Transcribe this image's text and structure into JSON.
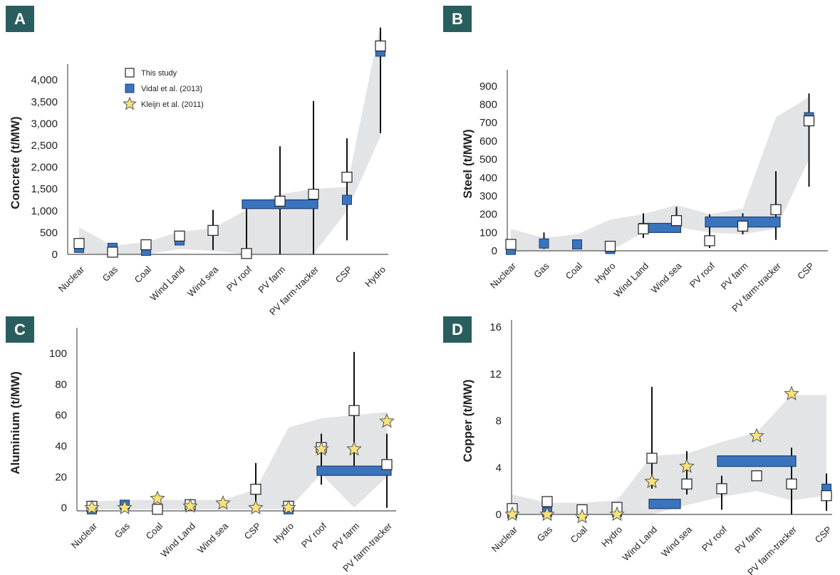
{
  "panels": [
    {
      "id": "A",
      "label": "A"
    },
    {
      "id": "B",
      "label": "B"
    },
    {
      "id": "C",
      "label": "C"
    },
    {
      "id": "D",
      "label": "D"
    }
  ],
  "legend": {
    "items": [
      {
        "label": "This study",
        "marker": "open-square"
      },
      {
        "label": "Vidal et al. (2013)",
        "marker": "blue-square"
      },
      {
        "label": "Kleijn et al. (2011)",
        "marker": "yellow-star"
      }
    ]
  },
  "colors": {
    "badge": "#2a5e5e",
    "vidal": "#3a74bf",
    "vidal_edge": "#1d3f70",
    "star": "#f8e27a",
    "star_edge": "#555555",
    "band": "#e3e4e5",
    "axis": "#555555",
    "whisker": "#111111"
  },
  "chart_data": [
    {
      "panel": "A",
      "type": "scatter",
      "ylabel": "Concrete (t/MW)",
      "ylim": [
        0,
        4200
      ],
      "yticks": [
        0,
        500,
        1000,
        1500,
        2000,
        2500,
        3000,
        3500,
        4000
      ],
      "ytick_labels": [
        "0",
        "500",
        "1,000",
        "1,500",
        "2,000",
        "2,500",
        "3,000",
        "3,500",
        "4,000"
      ],
      "categories": [
        "Nuclear",
        "Gas",
        "Coal",
        "Wind Land",
        "Wind sea",
        "PV roof",
        "PV farm",
        "PV farm-tracker",
        "CSP",
        "Hydro"
      ],
      "this_study": [
        {
          "x": "Nuclear",
          "y": 250
        },
        {
          "x": "Gas",
          "y": 50
        },
        {
          "x": "Coal",
          "y": 220
        },
        {
          "x": "Wind Land",
          "y": 420
        },
        {
          "x": "Wind sea",
          "y": 550
        },
        {
          "x": "PV roof",
          "y": 20
        },
        {
          "x": "PV farm",
          "y": 1220
        },
        {
          "x": "PV farm-tracker",
          "y": 1380
        },
        {
          "x": "CSP",
          "y": 1770
        },
        {
          "x": "Hydro",
          "y": 4780
        }
      ],
      "vidal_2013": [
        {
          "x": "Nuclear",
          "y": 150
        },
        {
          "x": "Gas",
          "y": 150
        },
        {
          "x": "Coal",
          "y": 80
        },
        {
          "x": "Wind Land",
          "y": 320
        },
        {
          "x": "CSP",
          "y": 1250
        },
        {
          "x": "Hydro",
          "y": 4650
        }
      ],
      "vidal_range_bar": {
        "from": "PV roof",
        "to": "PV farm-tracker",
        "low": 1050,
        "high": 1250
      },
      "kleijn_2011": [],
      "whiskers": [
        {
          "x": "Wind sea",
          "low": 100,
          "high": 1020
        },
        {
          "x": "PV roof",
          "low": 0,
          "high": 1080
        },
        {
          "x": "PV farm",
          "low": 0,
          "high": 2480
        },
        {
          "x": "PV farm-tracker",
          "low": 0,
          "high": 3520
        },
        {
          "x": "CSP",
          "low": 320,
          "high": 2660
        },
        {
          "x": "Hydro",
          "low": 2780,
          "high": 5200
        }
      ],
      "band_top": [
        620,
        200,
        280,
        520,
        600,
        1020,
        1380,
        1500,
        1550,
        5300
      ],
      "band_bottom": [
        20,
        0,
        0,
        120,
        80,
        0,
        0,
        0,
        1000,
        2700
      ]
    },
    {
      "panel": "B",
      "type": "scatter",
      "ylabel": "Steel (t/MW)",
      "ylim": [
        0,
        950
      ],
      "yticks": [
        0,
        100,
        200,
        300,
        400,
        500,
        600,
        700,
        800,
        900
      ],
      "ytick_labels": [
        "0",
        "100",
        "200",
        "300",
        "400",
        "500",
        "600",
        "700",
        "800",
        "900"
      ],
      "categories": [
        "Nuclear",
        "Gas",
        "Coal",
        "Hydro",
        "Wind Land",
        "Wind sea",
        "PV roof",
        "PV farm",
        "PV farm-tracker",
        "CSP"
      ],
      "this_study": [
        {
          "x": "Nuclear",
          "y": 35
        },
        {
          "x": "Hydro",
          "y": 25
        },
        {
          "x": "Wind Land",
          "y": 120
        },
        {
          "x": "Wind sea",
          "y": 165
        },
        {
          "x": "PV roof",
          "y": 55
        },
        {
          "x": "PV farm",
          "y": 135
        },
        {
          "x": "PV farm-tracker",
          "y": 225
        },
        {
          "x": "CSP",
          "y": 710
        }
      ],
      "vidal_2013": [
        {
          "x": "Nuclear",
          "y": 5
        },
        {
          "x": "Gas",
          "y": 40
        },
        {
          "x": "Coal",
          "y": 35
        },
        {
          "x": "Hydro",
          "y": 10
        },
        {
          "x": "CSP",
          "y": 730
        }
      ],
      "vidal_range_bars": [
        {
          "from": "Wind Land",
          "to": "Wind sea",
          "low": 100,
          "high": 150
        },
        {
          "from": "PV roof",
          "to": "PV farm-tracker",
          "low": 130,
          "high": 185
        }
      ],
      "kleijn_2011": [],
      "whiskers": [
        {
          "x": "Gas",
          "low": 10,
          "high": 100
        },
        {
          "x": "Wind Land",
          "low": 70,
          "high": 205
        },
        {
          "x": "Wind sea",
          "low": 130,
          "high": 240
        },
        {
          "x": "PV roof",
          "low": 15,
          "high": 200
        },
        {
          "x": "PV farm",
          "low": 90,
          "high": 205
        },
        {
          "x": "PV farm-tracker",
          "low": 60,
          "high": 435
        },
        {
          "x": "CSP",
          "low": 350,
          "high": 860
        }
      ],
      "band_top": [
        120,
        70,
        90,
        170,
        200,
        250,
        200,
        230,
        730,
        840
      ],
      "band_bottom": [
        0,
        0,
        0,
        0,
        100,
        130,
        100,
        90,
        120,
        500
      ]
    },
    {
      "panel": "C",
      "type": "scatter",
      "ylabel": "Aluminium (t/MW)",
      "ylim": [
        -2,
        112
      ],
      "yticks": [
        0,
        20,
        40,
        60,
        80,
        100
      ],
      "ytick_labels": [
        "0",
        "20",
        "40",
        "60",
        "80",
        "100"
      ],
      "categories": [
        "Nuclear",
        "Gas",
        "Coal",
        "Wind Land",
        "Wind sea",
        "CSP",
        "Hydro",
        "PV roof",
        "PV farm",
        "PV farm-tracker"
      ],
      "this_study": [
        {
          "x": "Nuclear",
          "y": 1
        },
        {
          "x": "Coal",
          "y": -1
        },
        {
          "x": "Wind Land",
          "y": 2
        },
        {
          "x": "CSP",
          "y": 12
        },
        {
          "x": "Hydro",
          "y": 1
        },
        {
          "x": "PV roof",
          "y": 39
        },
        {
          "x": "PV farm",
          "y": 63
        },
        {
          "x": "PV farm-tracker",
          "y": 28
        }
      ],
      "vidal_2013": [
        {
          "x": "Nuclear",
          "y": -1
        },
        {
          "x": "Gas",
          "y": 2
        },
        {
          "x": "Coal",
          "y": -1
        },
        {
          "x": "Hydro",
          "y": -1
        }
      ],
      "vidal_range_bar": {
        "from": "PV roof",
        "to": "PV farm-tracker",
        "low": 21,
        "high": 27
      },
      "kleijn_2011": [
        {
          "x": "Nuclear",
          "y": 0
        },
        {
          "x": "Gas",
          "y": 0
        },
        {
          "x": "Coal",
          "y": 6
        },
        {
          "x": "Wind Land",
          "y": 1
        },
        {
          "x": "Wind sea",
          "y": 3
        },
        {
          "x": "CSP",
          "y": 0
        },
        {
          "x": "Hydro",
          "y": 0
        },
        {
          "x": "PV roof",
          "y": 38
        },
        {
          "x": "PV farm",
          "y": 38
        },
        {
          "x": "PV farm-tracker",
          "y": 56
        }
      ],
      "whiskers": [
        {
          "x": "CSP",
          "low": 0,
          "high": 29
        },
        {
          "x": "PV roof",
          "low": 15,
          "high": 48
        },
        {
          "x": "PV farm",
          "low": 25,
          "high": 101
        },
        {
          "x": "PV farm-tracker",
          "low": 0,
          "high": 48
        }
      ],
      "band_top": [
        4,
        5,
        5,
        5,
        5,
        12,
        52,
        58,
        60,
        62
      ],
      "band_bottom": [
        -1,
        -1,
        -1,
        -1,
        -1,
        -1,
        -1,
        22,
        0,
        20
      ]
    },
    {
      "panel": "D",
      "type": "scatter",
      "ylabel": "Copper (t/MW)",
      "ylim": [
        0,
        16
      ],
      "yticks": [
        0,
        4,
        8,
        12,
        16
      ],
      "ytick_labels": [
        "0",
        "4",
        "8",
        "12",
        "16"
      ],
      "categories": [
        "Nuclear",
        "Gas",
        "Coal",
        "Hydro",
        "Wind Land",
        "Wind sea",
        "PV roof",
        "PV farm",
        "PV farm-tracker",
        "CSP"
      ],
      "this_study": [
        {
          "x": "Nuclear",
          "y": 0.5
        },
        {
          "x": "Gas",
          "y": 1.1
        },
        {
          "x": "Coal",
          "y": 0.4
        },
        {
          "x": "Hydro",
          "y": 0.6
        },
        {
          "x": "Wind Land",
          "y": 4.8
        },
        {
          "x": "Wind sea",
          "y": 2.6
        },
        {
          "x": "PV roof",
          "y": 2.2
        },
        {
          "x": "PV farm",
          "y": 3.3
        },
        {
          "x": "PV farm-tracker",
          "y": 2.6
        },
        {
          "x": "CSP",
          "y": 1.6
        }
      ],
      "vidal_2013": [
        {
          "x": "Nuclear",
          "y": 0.1
        },
        {
          "x": "Gas",
          "y": 0.2
        },
        {
          "x": "Coal",
          "y": 0.1
        },
        {
          "x": "Hydro",
          "y": 0.2
        },
        {
          "x": "CSP",
          "y": 2.2
        }
      ],
      "vidal_range_bars": [
        {
          "from": "Wind Land",
          "to": "Wind Land",
          "low": 0.5,
          "high": 1.3,
          "wide": true
        },
        {
          "from": "PV roof",
          "to": "PV farm-tracker",
          "low": 4.1,
          "high": 5.0
        }
      ],
      "kleijn_2011": [
        {
          "x": "Nuclear",
          "y": 0
        },
        {
          "x": "Gas",
          "y": 0
        },
        {
          "x": "Coal",
          "y": -0.2
        },
        {
          "x": "Hydro",
          "y": 0
        },
        {
          "x": "Wind Land",
          "y": 2.8
        },
        {
          "x": "Wind sea",
          "y": 4.1
        },
        {
          "x": "PV farm",
          "y": 6.7
        },
        {
          "x": "PV farm-tracker",
          "y": 10.3
        }
      ],
      "whiskers": [
        {
          "x": "Wind Land",
          "low": 2.2,
          "high": 10.9
        },
        {
          "x": "Wind sea",
          "low": 1.7,
          "high": 5.4
        },
        {
          "x": "PV roof",
          "low": 0.4,
          "high": 3.3
        },
        {
          "x": "PV farm-tracker",
          "low": 0,
          "high": 5.7
        },
        {
          "x": "CSP",
          "low": 0.3,
          "high": 3.5
        }
      ],
      "band_top": [
        1.7,
        1.0,
        1.0,
        1.2,
        5.0,
        5.2,
        6.2,
        7.0,
        10.2,
        10.2
      ],
      "band_bottom": [
        0,
        0,
        0,
        0,
        0,
        0.8,
        1.5,
        2.0,
        1.2,
        1.6
      ]
    }
  ]
}
